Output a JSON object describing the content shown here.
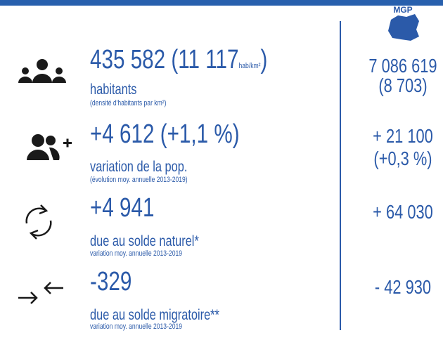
{
  "header": {
    "compare_label": "MGP"
  },
  "rows": [
    {
      "value_main": "435 582 (11 117",
      "value_unit": "hab/km²",
      "value_close": ")",
      "label": "habitants",
      "sublabel": "(densité d'habitants par km²)",
      "compare": [
        "7 086 619",
        "(8 703)"
      ]
    },
    {
      "value_main": "+4 612 (+1,1 %)",
      "label": "variation de la pop.",
      "sublabel": "(évolution moy. annuelle 2013-2019)",
      "compare": [
        "+ 21 100",
        "(+0,3 %)"
      ]
    },
    {
      "value_main": "+4 941",
      "label": "due au solde naturel*",
      "sublabel": "variation moy. annuelle 2013-2019",
      "compare": [
        "+ 64 030"
      ]
    },
    {
      "value_main": "-329",
      "label": "due au solde migratoire**",
      "sublabel": "variation moy. annuelle 2013-2019",
      "compare": [
        "- 42 930"
      ]
    }
  ]
}
